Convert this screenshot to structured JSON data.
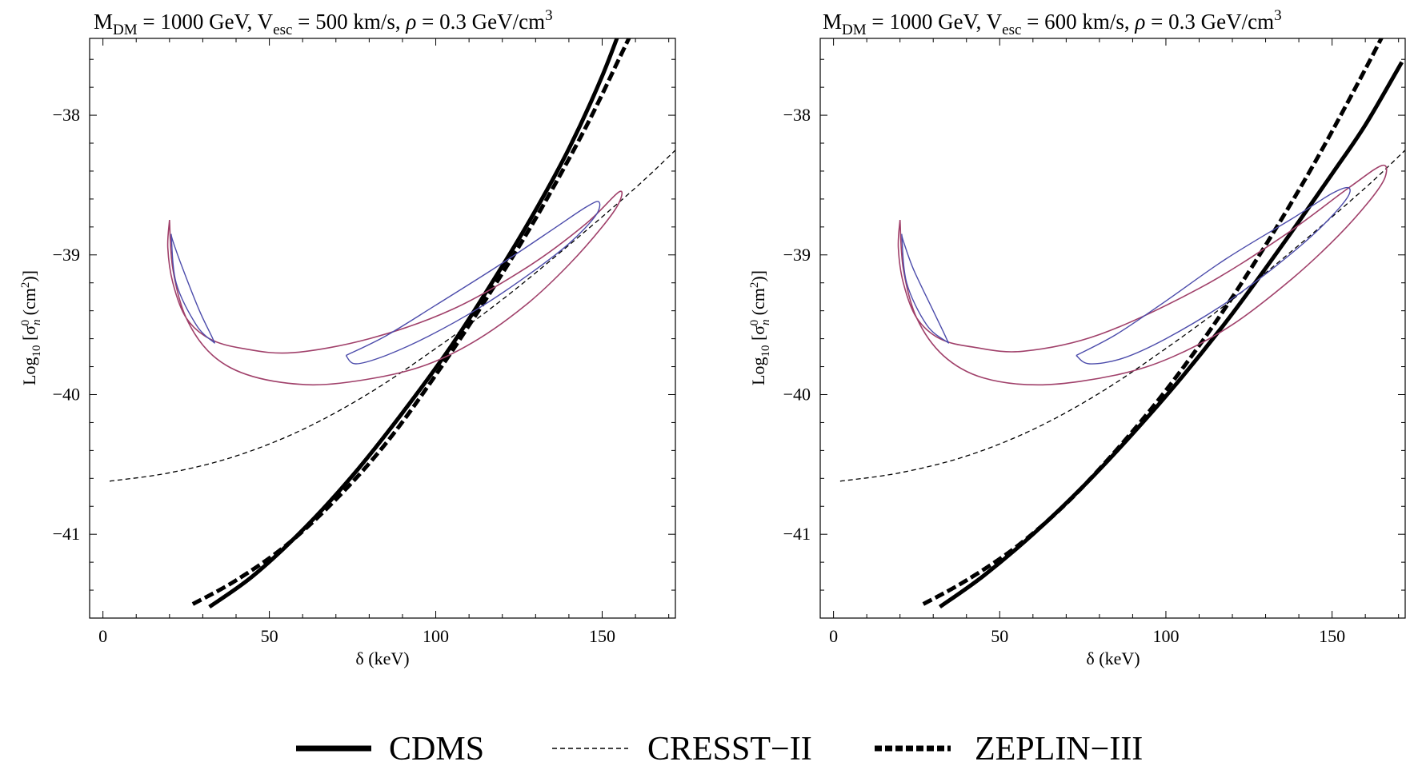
{
  "colors": {
    "axis": "#000000",
    "outer_contour": "#a0406a",
    "inner_contour": "#4c4cab",
    "limit_curves": "#000000"
  },
  "chart_data": [
    {
      "type": "line",
      "title": {
        "m_sym": "M",
        "m_sub": "DM",
        "m_val": " = 1000 GeV, ",
        "v_sym": "V",
        "v_sub": "esc",
        "v_val": " = 500 km/s, ",
        "rho_sym": "ρ",
        "rho_val": " = 0.3 GeV/cm",
        "rho_sup": "3"
      },
      "xlabel": "δ (keV)",
      "ylabel": {
        "a": "Log",
        "a_sub": "10",
        "b": " [σ",
        "b_sub": "n",
        "b_sup": "0",
        "c": " (cm",
        "c_sup": "2",
        "d": ")]"
      },
      "xlim": [
        -4,
        172
      ],
      "ylim": [
        -41.6,
        -37.45
      ],
      "xticks": [
        0,
        50,
        100,
        150
      ],
      "xtick_labels": [
        "0",
        "50",
        "100",
        "150"
      ],
      "yticks": [
        -38,
        -39,
        -40,
        -41
      ],
      "ytick_labels": [
        "−38",
        "−39",
        "−40",
        "−41"
      ],
      "grid": false,
      "series": [
        {
          "name": "CDMS",
          "style": "solid",
          "x": [
            32,
            45,
            60,
            75,
            90,
            105,
            120,
            130,
            140,
            150,
            158
          ],
          "y": [
            -41.52,
            -41.3,
            -40.97,
            -40.58,
            -40.13,
            -39.64,
            -39.08,
            -38.68,
            -38.24,
            -37.72,
            -37.22
          ]
        },
        {
          "name": "CRESST-II",
          "style": "thin-dashed",
          "x": [
            2,
            20,
            40,
            60,
            80,
            100,
            120,
            140,
            160,
            172
          ],
          "y": [
            -40.62,
            -40.56,
            -40.44,
            -40.25,
            -39.99,
            -39.67,
            -39.32,
            -38.93,
            -38.52,
            -38.25
          ]
        },
        {
          "name": "ZEPLIN-III",
          "style": "thick-dashed",
          "x": [
            27,
            40,
            55,
            70,
            85,
            100,
            115,
            130,
            145,
            155,
            163
          ],
          "y": [
            -41.5,
            -41.33,
            -41.08,
            -40.75,
            -40.35,
            -39.86,
            -39.32,
            -38.74,
            -38.09,
            -37.6,
            -37.2
          ]
        },
        {
          "name": "",
          "style": "outer-contour",
          "x": [
            20,
            19.5,
            21,
            25,
            32,
            42,
            57,
            80,
            105,
            128,
            145,
            155,
            155,
            150,
            140,
            128,
            113,
            98,
            82,
            63,
            45,
            33,
            25,
            21,
            20
          ],
          "y": [
            -38.75,
            -38.95,
            -39.2,
            -39.45,
            -39.6,
            -39.67,
            -39.7,
            -39.6,
            -39.39,
            -39.08,
            -38.78,
            -38.55,
            -38.63,
            -38.8,
            -39.07,
            -39.34,
            -39.6,
            -39.78,
            -39.88,
            -39.93,
            -39.87,
            -39.72,
            -39.45,
            -39.1,
            -38.75
          ]
        },
        {
          "name": "",
          "style": "inner-contour",
          "x": [
            20.5,
            22,
            28,
            33,
            33,
            29,
            24,
            21,
            20.5
          ],
          "y": [
            -38.85,
            -39.2,
            -39.5,
            -39.62,
            -39.6,
            -39.4,
            -39.1,
            -38.9,
            -38.85
          ]
        },
        {
          "name": "",
          "style": "inner-contour",
          "x": [
            73,
            85,
            100,
            118,
            135,
            145,
            149,
            148,
            140,
            128,
            113,
            98,
            85,
            76,
            73
          ],
          "y": [
            -39.72,
            -39.58,
            -39.36,
            -39.09,
            -38.82,
            -38.66,
            -38.62,
            -38.72,
            -38.92,
            -39.14,
            -39.38,
            -39.58,
            -39.72,
            -39.78,
            -39.72
          ]
        }
      ]
    },
    {
      "type": "line",
      "title": {
        "m_sym": "M",
        "m_sub": "DM",
        "m_val": " = 1000 GeV, ",
        "v_sym": "V",
        "v_sub": "esc",
        "v_val": " = 600 km/s, ",
        "rho_sym": "ρ",
        "rho_val": " = 0.3 GeV/cm",
        "rho_sup": "3"
      },
      "xlabel": "δ (keV)",
      "ylabel": {
        "a": "Log",
        "a_sub": "10",
        "b": " [σ",
        "b_sub": "n",
        "b_sup": "0",
        "c": " (cm",
        "c_sup": "2",
        "d": ")]"
      },
      "xlim": [
        -4,
        172
      ],
      "ylim": [
        -41.6,
        -37.45
      ],
      "xticks": [
        0,
        50,
        100,
        150
      ],
      "xtick_labels": [
        "0",
        "50",
        "100",
        "150"
      ],
      "yticks": [
        -38,
        -39,
        -40,
        -41
      ],
      "ytick_labels": [
        "−38",
        "−39",
        "−40",
        "−41"
      ],
      "grid": false,
      "series": [
        {
          "name": "CDMS",
          "style": "solid",
          "x": [
            32,
            45,
            60,
            75,
            90,
            105,
            120,
            135,
            150,
            160,
            171
          ],
          "y": [
            -41.52,
            -41.3,
            -41.0,
            -40.66,
            -40.28,
            -39.87,
            -39.42,
            -38.93,
            -38.42,
            -38.07,
            -37.62
          ]
        },
        {
          "name": "CRESST-II",
          "style": "thin-dashed",
          "x": [
            2,
            20,
            40,
            60,
            80,
            100,
            120,
            140,
            160,
            172
          ],
          "y": [
            -40.62,
            -40.56,
            -40.44,
            -40.25,
            -39.99,
            -39.67,
            -39.32,
            -38.93,
            -38.52,
            -38.25
          ]
        },
        {
          "name": "ZEPLIN-III",
          "style": "thick-dashed",
          "x": [
            27,
            40,
            55,
            70,
            85,
            100,
            115,
            130,
            145,
            160,
            171
          ],
          "y": [
            -41.5,
            -41.33,
            -41.09,
            -40.78,
            -40.4,
            -39.97,
            -39.48,
            -38.93,
            -38.33,
            -37.67,
            -37.16
          ]
        },
        {
          "name": "",
          "style": "outer-contour",
          "x": [
            20,
            19.5,
            21,
            25,
            32,
            42,
            57,
            80,
            110,
            135,
            155,
            165,
            166,
            162,
            152,
            138,
            120,
            102,
            85,
            63,
            45,
            33,
            25,
            21,
            20
          ],
          "y": [
            -38.75,
            -38.95,
            -39.2,
            -39.45,
            -39.6,
            -39.66,
            -39.69,
            -39.57,
            -39.24,
            -38.87,
            -38.52,
            -38.36,
            -38.44,
            -38.59,
            -38.86,
            -39.17,
            -39.5,
            -39.73,
            -39.86,
            -39.93,
            -39.88,
            -39.72,
            -39.45,
            -39.1,
            -38.75
          ]
        },
        {
          "name": "",
          "style": "inner-contour",
          "x": [
            20.5,
            22,
            28,
            34,
            34,
            30,
            24,
            21,
            20.5
          ],
          "y": [
            -38.85,
            -39.2,
            -39.5,
            -39.62,
            -39.6,
            -39.4,
            -39.1,
            -38.9,
            -38.85
          ]
        },
        {
          "name": "",
          "style": "inner-contour",
          "x": [
            73,
            85,
            100,
            118,
            138,
            150,
            155,
            154,
            145,
            132,
            117,
            100,
            87,
            77,
            73
          ],
          "y": [
            -39.72,
            -39.57,
            -39.33,
            -39.03,
            -38.74,
            -38.56,
            -38.52,
            -38.61,
            -38.84,
            -39.1,
            -39.36,
            -39.6,
            -39.74,
            -39.78,
            -39.72
          ]
        }
      ]
    }
  ],
  "legend": {
    "items": [
      {
        "label": "CDMS",
        "style": "solid"
      },
      {
        "label": "CRESST−II",
        "style": "thin-dashed"
      },
      {
        "label": "ZEPLIN−III",
        "style": "thick-dashed"
      }
    ]
  }
}
